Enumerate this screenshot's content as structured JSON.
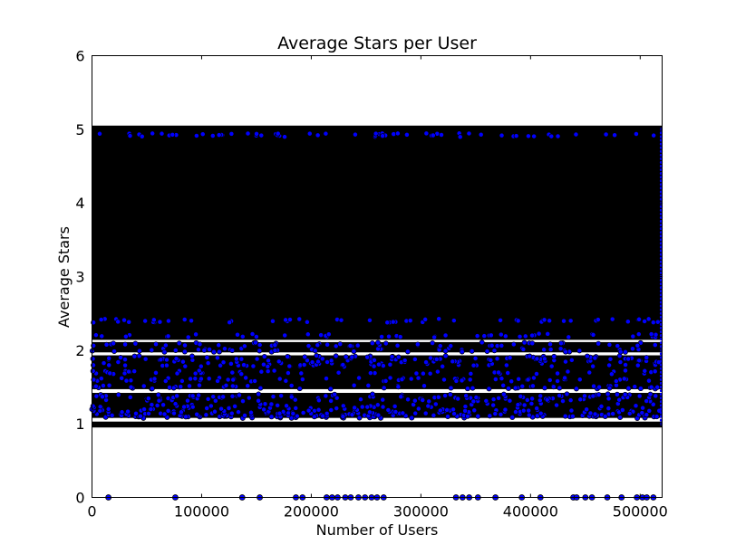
{
  "chart_data": {
    "type": "scatter",
    "title": "Average Stars per User",
    "xlabel": "Number of Users",
    "ylabel": "Average Stars",
    "xlim": [
      0,
      520000
    ],
    "ylim": [
      0,
      6
    ],
    "x_ticks": [
      0,
      100000,
      200000,
      300000,
      400000,
      500000
    ],
    "x_tick_labels": [
      "0",
      "100000",
      "200000",
      "300000",
      "400000",
      "500000"
    ],
    "y_ticks": [
      0,
      1,
      2,
      3,
      4,
      5,
      6
    ],
    "y_tick_labels": [
      "0",
      "1",
      "2",
      "3",
      "4",
      "5",
      "6"
    ],
    "grid": false,
    "marker_color": "#0000ff",
    "marker_edge_color": "#000000",
    "dense_region": {
      "y_range": [
        0.95,
        5.05
      ],
      "note": "Points fill nearly the whole band between 1 and 5"
    },
    "series": [
      {
        "values_description": "per-user average star rating",
        "zero_value_users_x": [
          15000,
          76000,
          137000,
          153000,
          186000,
          192000,
          214000,
          219000,
          224000,
          231000,
          236000,
          243000,
          249000,
          255000,
          260000,
          266000,
          332000,
          338000,
          344000,
          352000,
          368000,
          392000,
          409000,
          439000,
          442000,
          450000,
          456000,
          470000,
          483000,
          497000,
          502000,
          506000,
          512000
        ]
      }
    ]
  }
}
